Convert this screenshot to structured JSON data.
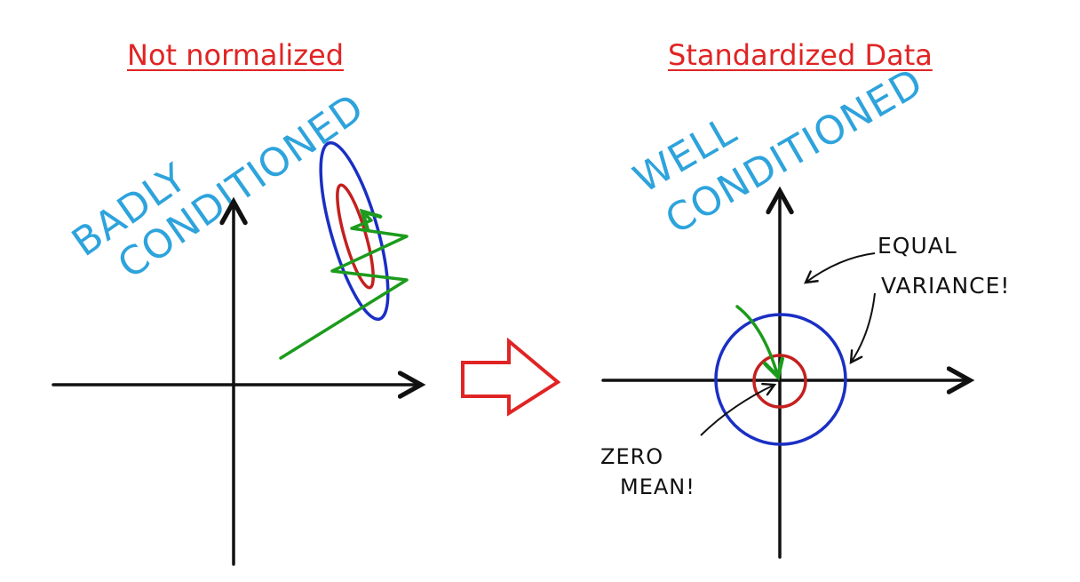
{
  "titles": {
    "left": "Not normalized",
    "right": "Standardized Data"
  },
  "annotations": {
    "badly": "BADLY",
    "conditioned_left": "CONDITIONED",
    "well": "WELL",
    "conditioned_right": "CONDITIONED",
    "equal": "EQUAL",
    "variance": "VARIANCE!",
    "zero": "ZERO",
    "mean": "MEAN!"
  },
  "colors": {
    "title": "#e02424",
    "handwriting": "#2ea3dc",
    "outer_contour": "#1a2fc4",
    "inner_contour": "#c4201f",
    "gradient_path": "#1c9b1c",
    "axes": "#111111",
    "transition_arrow": "#e02424"
  }
}
